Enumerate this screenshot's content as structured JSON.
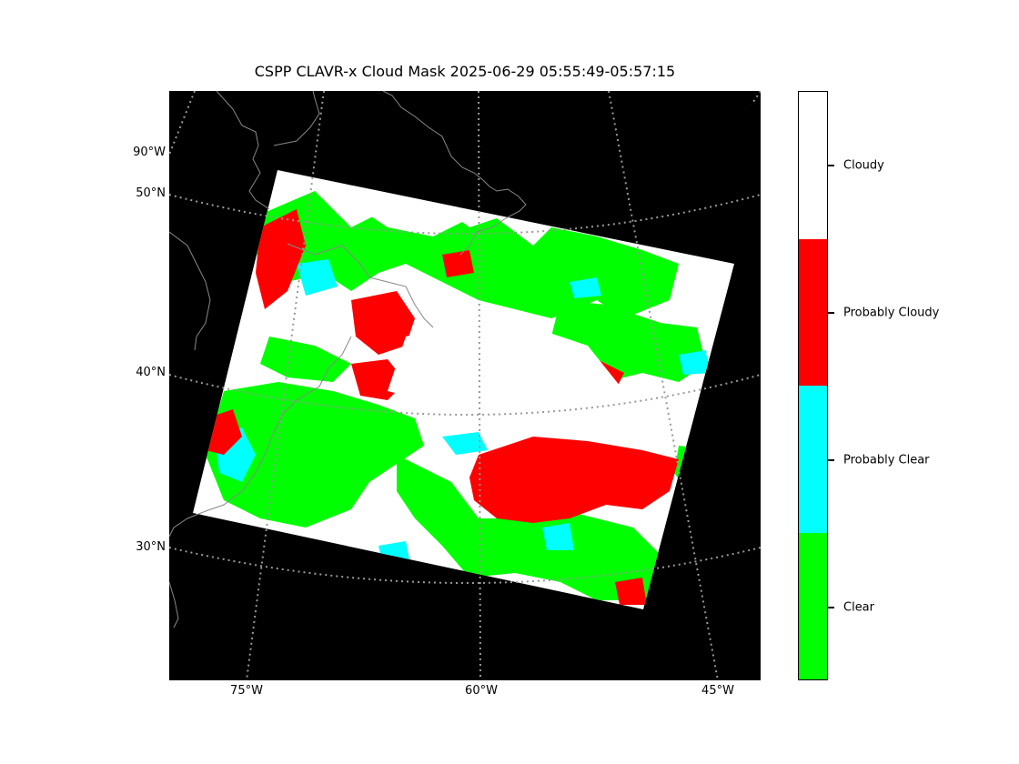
{
  "title": "CSPP CLAVR-x Cloud Mask 2025-06-29 05:55:49-05:57:15",
  "map": {
    "background_color": "#000000",
    "coastline_color": "#888888",
    "gridline_color": "#999999",
    "gridline_style": "dotted",
    "lat_labels": [
      "90°W",
      "50°N",
      "40°N",
      "30°N"
    ],
    "lon_labels": [
      "75°W",
      "60°W",
      "45°W"
    ]
  },
  "legend": {
    "type": "colorbar",
    "position": "right",
    "categories": [
      {
        "label": "Cloudy",
        "color": "#ffffff"
      },
      {
        "label": "Probably Cloudy",
        "color": "#ff0000"
      },
      {
        "label": "Probably Clear",
        "color": "#00ffff"
      },
      {
        "label": "Clear",
        "color": "#00ff00"
      }
    ]
  }
}
